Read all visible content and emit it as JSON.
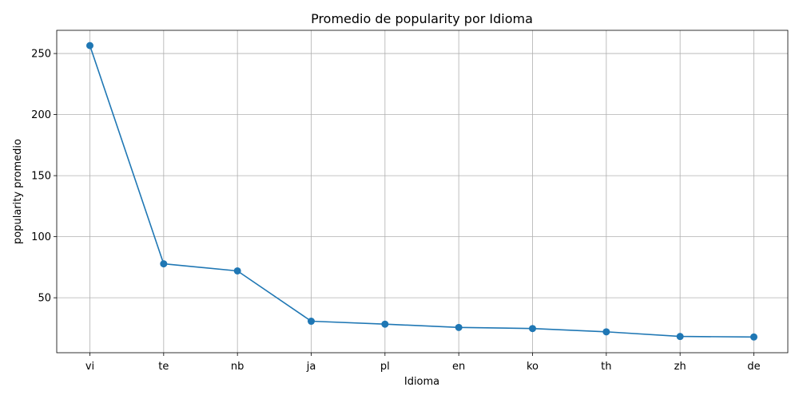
{
  "chart_data": {
    "type": "line",
    "title": "Promedio de popularity por Idioma",
    "xlabel": "Idioma",
    "ylabel": "popularity promedio",
    "categories": [
      "vi",
      "te",
      "nb",
      "ja",
      "pl",
      "en",
      "ko",
      "th",
      "zh",
      "de"
    ],
    "series": [
      {
        "values": [
          256.5,
          77.8,
          72.0,
          30.8,
          28.4,
          25.7,
          24.8,
          22.1,
          18.3,
          17.9
        ]
      }
    ],
    "ylim": [
      5.0,
      269.0
    ],
    "yticks": [
      50,
      100,
      150,
      200,
      250
    ],
    "grid": true,
    "line_color": "#1f77b4",
    "grid_color": "#b0b0b0"
  }
}
